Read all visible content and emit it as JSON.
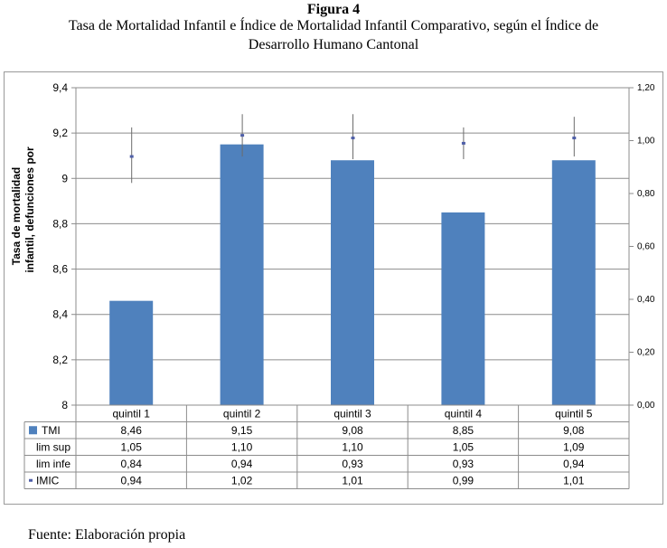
{
  "figure": {
    "label": "Figura 4",
    "title_line1": "Tasa de Mortalidad Infantil e Índice de Mortalidad Infantil Comparativo, según el Índice de",
    "title_line2": "Desarrollo Humano Cantonal",
    "source": "Fuente: Elaboración propia"
  },
  "chart_data": {
    "type": "bar",
    "categories": [
      "quintil 1",
      "quintil 2",
      "quintil 3",
      "quintil 4",
      "quintil 5"
    ],
    "ylabel_line1": "Tasa de mortalidad",
    "ylabel_line2": "infantil, defunciones por",
    "y_left": {
      "range": [
        8,
        9.4
      ],
      "ticks": [
        "8",
        "8,2",
        "8,4",
        "8,6",
        "8,8",
        "9",
        "9,2",
        "9,4"
      ]
    },
    "y_right": {
      "range": [
        0,
        1.2
      ],
      "ticks": [
        "0,00",
        "0,20",
        "0,40",
        "0,60",
        "0,80",
        "1,00",
        "1,20"
      ]
    },
    "grid": true,
    "legend": "data-table",
    "series": [
      {
        "name": "TMI",
        "axis": "left",
        "kind": "bar",
        "color": "#4f81bd",
        "values": [
          8.46,
          9.15,
          9.08,
          8.85,
          9.08
        ],
        "labels": [
          "8,46",
          "9,15",
          "9,08",
          "8,85",
          "9,08"
        ]
      },
      {
        "name": "lim sup",
        "axis": "right",
        "kind": "error-high",
        "values": [
          1.05,
          1.1,
          1.1,
          1.05,
          1.09
        ],
        "labels": [
          "1,05",
          "1,10",
          "1,10",
          "1,05",
          "1,09"
        ]
      },
      {
        "name": "lim infe",
        "axis": "right",
        "kind": "error-low",
        "values": [
          0.84,
          0.94,
          0.93,
          0.93,
          0.94
        ],
        "labels": [
          "0,84",
          "0,94",
          "0,93",
          "0,93",
          "0,94"
        ]
      },
      {
        "name": "IMIC",
        "axis": "right",
        "kind": "marker",
        "color": "#4f5fa8",
        "values": [
          0.94,
          1.02,
          1.01,
          0.99,
          1.01
        ],
        "labels": [
          "0,94",
          "1,02",
          "1,01",
          "0,99",
          "1,01"
        ]
      }
    ]
  }
}
